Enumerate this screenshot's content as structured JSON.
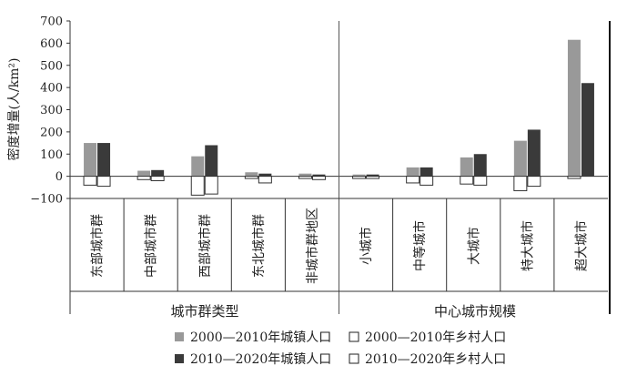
{
  "chart_data": {
    "type": "bar",
    "ylabel": "密度增量(人/km²)",
    "ylim": [
      -100,
      700
    ],
    "yticks": [
      "700",
      "600",
      "500",
      "400",
      "300",
      "200",
      "100",
      "0",
      "−100"
    ],
    "categories": [
      "东部城市群",
      "中部城市群",
      "西部城市群",
      "东北城市群",
      "非城市群地区",
      "小城市",
      "中等城市",
      "大城市",
      "特大城市",
      "超大城市"
    ],
    "groups": [
      "城市群类型",
      "中心城市规模"
    ],
    "series": [
      {
        "name": "2000—2010年城镇人口",
        "color": "#999999",
        "values": [
          150,
          25,
          90,
          18,
          12,
          8,
          40,
          85,
          160,
          615
        ]
      },
      {
        "name": "2010—2020年城镇人口",
        "color": "#3a3a3a",
        "values": [
          150,
          28,
          140,
          12,
          8,
          8,
          40,
          100,
          210,
          420
        ]
      },
      {
        "name": "2000—2010年乡村人口",
        "color": "#ffffff",
        "values": [
          -40,
          -15,
          -85,
          -10,
          -10,
          -10,
          -30,
          -35,
          -65,
          -10
        ]
      },
      {
        "name": "2010—2020年乡村人口",
        "color": "#ffffff",
        "values": [
          -45,
          -20,
          -80,
          -30,
          -15,
          -10,
          -40,
          -40,
          -45,
          0
        ]
      }
    ]
  }
}
